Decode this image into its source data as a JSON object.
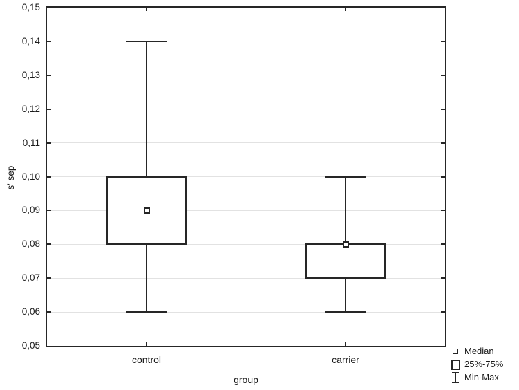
{
  "chart_data": {
    "type": "boxplot",
    "title": "",
    "xlabel": "group",
    "ylabel": "s' sep",
    "categories": [
      "control",
      "carrier"
    ],
    "series": [
      {
        "name": "control",
        "min": 0.06,
        "q1": 0.08,
        "median": 0.09,
        "q3": 0.1,
        "max": 0.14
      },
      {
        "name": "carrier",
        "min": 0.06,
        "q1": 0.07,
        "median": 0.08,
        "q3": 0.08,
        "max": 0.1
      }
    ],
    "ylim": [
      0.05,
      0.15
    ],
    "ytick_step": 0.01,
    "decimal_separator": ",",
    "yticks": [
      {
        "value": 0.15,
        "label": "0,15"
      },
      {
        "value": 0.14,
        "label": "0,14"
      },
      {
        "value": 0.13,
        "label": "0,13"
      },
      {
        "value": 0.12,
        "label": "0,12"
      },
      {
        "value": 0.11,
        "label": "0,11"
      },
      {
        "value": 0.1,
        "label": "0,10"
      },
      {
        "value": 0.09,
        "label": "0,09"
      },
      {
        "value": 0.08,
        "label": "0,08"
      },
      {
        "value": 0.07,
        "label": "0,07"
      },
      {
        "value": 0.06,
        "label": "0,06"
      },
      {
        "value": 0.05,
        "label": "0,05"
      }
    ],
    "grid": true,
    "legend_position": "bottom-right",
    "legend": [
      {
        "icon": "median-square-icon",
        "label": "Median"
      },
      {
        "icon": "iqr-box-icon",
        "label": "25%-75%"
      },
      {
        "icon": "min-max-ibeam-icon",
        "label": "Min-Max"
      }
    ],
    "colors": {
      "line": "#262626",
      "gridline": "#e2e2e2",
      "background": "#ffffff",
      "box_fill": "#ffffff"
    }
  }
}
